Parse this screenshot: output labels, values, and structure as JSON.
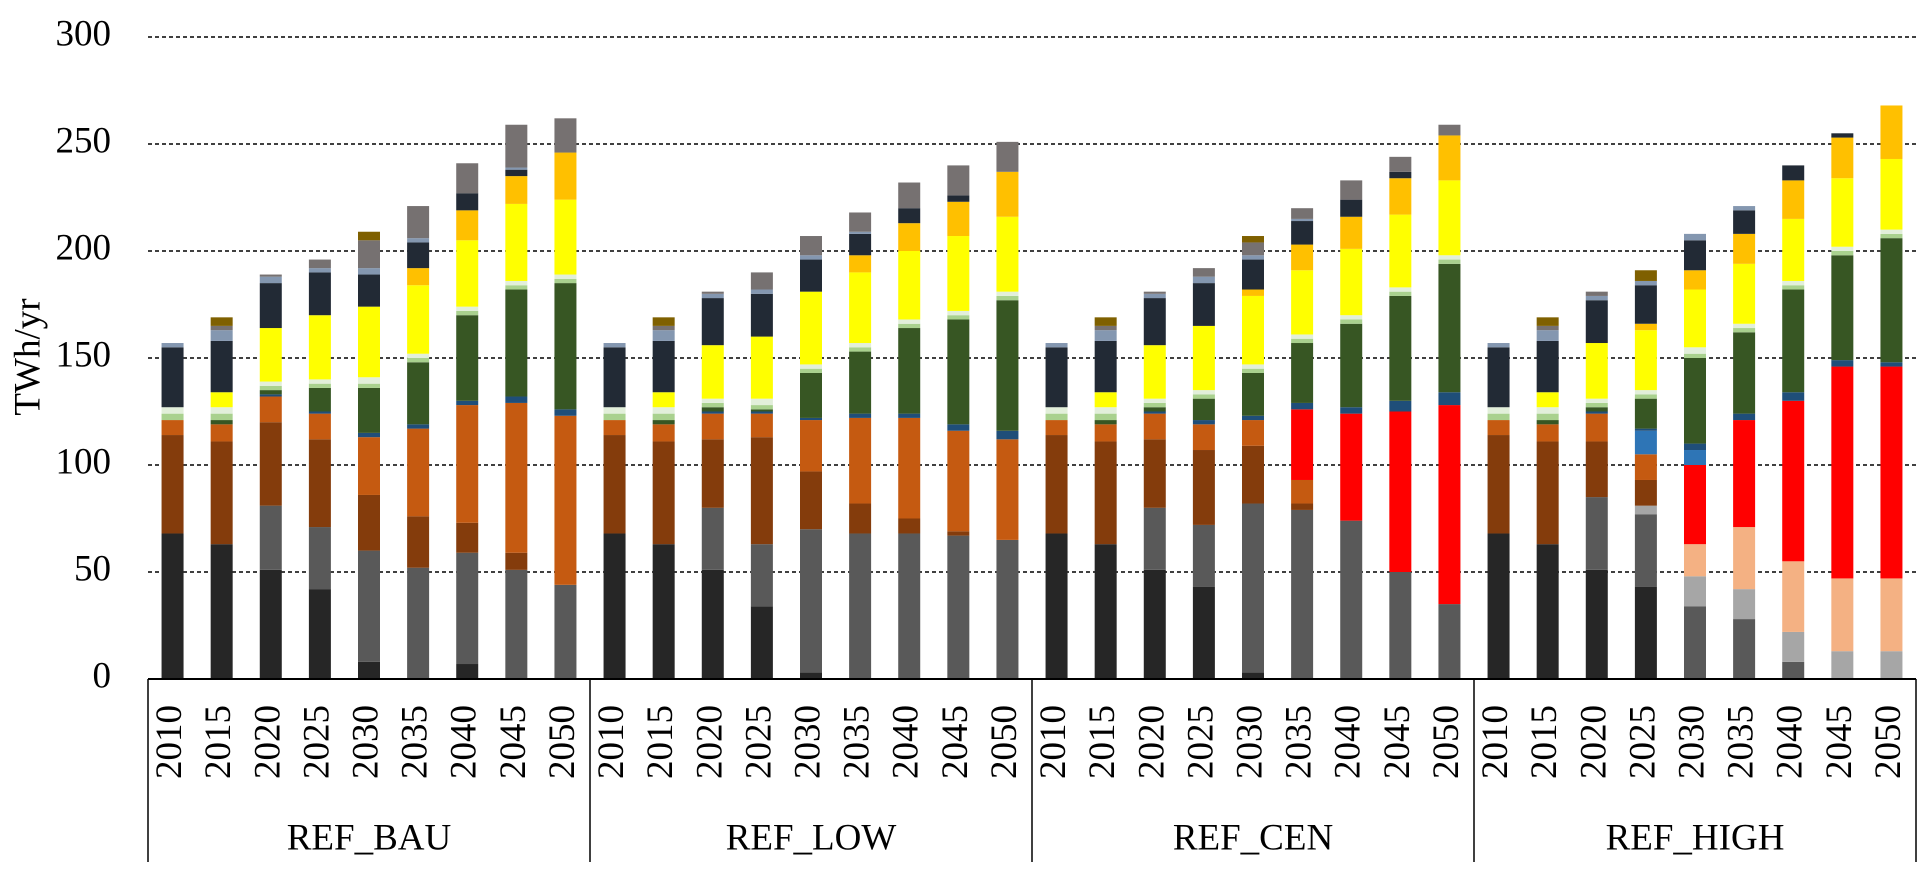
{
  "chart_data": {
    "type": "stacked_bar",
    "y_label": "TWh/yr",
    "groups": [
      "REF_BAU",
      "REF_LOW",
      "REF_CEN",
      "REF_HIGH"
    ],
    "categories": [
      "2010",
      "2015",
      "2020",
      "2025",
      "2030",
      "2035",
      "2040",
      "2045",
      "2050",
      "2010",
      "2015",
      "2020",
      "2025",
      "2030",
      "2035",
      "2040",
      "2045",
      "2050",
      "2010",
      "2015",
      "2020",
      "2025",
      "2030",
      "2035",
      "2040",
      "2045",
      "2050",
      "2010",
      "2015",
      "2020",
      "2025",
      "2030",
      "2035",
      "2040",
      "2045",
      "2050"
    ],
    "ylim": [
      0,
      300
    ],
    "yticks": [
      0,
      50,
      100,
      150,
      200,
      250,
      300
    ],
    "grid": true,
    "series": [
      {
        "color": "#262626",
        "values": [
          68,
          63,
          51,
          42,
          8,
          0,
          7,
          0,
          0,
          68,
          63,
          51,
          34,
          3,
          0,
          0,
          0,
          0,
          68,
          63,
          51,
          43,
          3,
          0,
          0,
          0,
          0,
          68,
          63,
          51,
          43,
          0,
          0,
          0,
          0,
          0
        ]
      },
      {
        "color": "#595959",
        "values": [
          0,
          0,
          30,
          29,
          52,
          52,
          52,
          51,
          44,
          0,
          0,
          29,
          29,
          67,
          68,
          68,
          67,
          65,
          0,
          0,
          29,
          29,
          79,
          79,
          74,
          50,
          35,
          0,
          0,
          34,
          34,
          34,
          28,
          8,
          0,
          0
        ]
      },
      {
        "color": "#a6a6a6",
        "values": [
          0,
          0,
          0,
          0,
          0,
          0,
          0,
          0,
          0,
          0,
          0,
          0,
          0,
          0,
          0,
          0,
          0,
          0,
          0,
          0,
          0,
          0,
          0,
          0,
          0,
          0,
          0,
          0,
          0,
          0,
          4,
          14,
          14,
          14,
          13,
          13
        ]
      },
      {
        "color": "#f4b183",
        "values": [
          0,
          0,
          0,
          0,
          0,
          0,
          0,
          0,
          0,
          0,
          0,
          0,
          0,
          0,
          0,
          0,
          0,
          0,
          0,
          0,
          0,
          0,
          0,
          0,
          0,
          0,
          0,
          0,
          0,
          0,
          0,
          15,
          29,
          33,
          34,
          34
        ]
      },
      {
        "color": "#843c0c",
        "values": [
          46,
          48,
          39,
          41,
          26,
          24,
          14,
          8,
          0,
          46,
          48,
          32,
          50,
          27,
          14,
          7,
          2,
          0,
          46,
          48,
          32,
          35,
          27,
          3,
          0,
          0,
          0,
          46,
          48,
          26,
          12,
          0,
          0,
          0,
          0,
          0
        ]
      },
      {
        "color": "#c55a11",
        "values": [
          7,
          8,
          12,
          12,
          27,
          41,
          55,
          70,
          79,
          7,
          8,
          12,
          11,
          24,
          40,
          47,
          47,
          47,
          7,
          8,
          12,
          12,
          12,
          11,
          0,
          0,
          0,
          7,
          8,
          13,
          12,
          0,
          0,
          0,
          0,
          0
        ]
      },
      {
        "color": "#ff0000",
        "values": [
          0,
          0,
          0,
          0,
          0,
          0,
          0,
          0,
          0,
          0,
          0,
          0,
          0,
          0,
          0,
          0,
          0,
          0,
          0,
          0,
          0,
          0,
          0,
          33,
          50,
          75,
          93,
          0,
          0,
          0,
          0,
          37,
          50,
          75,
          99,
          99
        ]
      },
      {
        "color": "#2e75b6",
        "values": [
          0,
          0,
          0,
          0,
          0,
          0,
          0,
          0,
          0,
          0,
          0,
          0,
          0,
          0,
          0,
          0,
          0,
          0,
          0,
          0,
          0,
          0,
          0,
          0,
          0,
          0,
          0,
          0,
          0,
          0,
          11,
          7,
          0,
          0,
          0,
          0
        ]
      },
      {
        "color": "#1f4e79",
        "values": [
          0,
          0,
          1,
          1,
          2,
          2,
          2,
          3,
          3,
          0,
          0,
          1,
          1,
          1,
          2,
          2,
          3,
          4,
          0,
          0,
          1,
          2,
          2,
          3,
          3,
          5,
          6,
          0,
          0,
          1,
          1,
          3,
          3,
          4,
          3,
          2
        ]
      },
      {
        "color": "#375623",
        "values": [
          0,
          2,
          2,
          11,
          21,
          29,
          40,
          50,
          59,
          0,
          2,
          2,
          1,
          21,
          29,
          40,
          49,
          61,
          0,
          2,
          2,
          10,
          20,
          28,
          39,
          49,
          60,
          0,
          2,
          2,
          14,
          40,
          38,
          48,
          49,
          58
        ]
      },
      {
        "color": "#a9d18e",
        "values": [
          3,
          3,
          2,
          2,
          2,
          2,
          2,
          2,
          2,
          3,
          3,
          2,
          2,
          2,
          2,
          2,
          2,
          2,
          3,
          3,
          2,
          2,
          2,
          2,
          2,
          2,
          2,
          3,
          3,
          2,
          2,
          2,
          2,
          2,
          2,
          2
        ]
      },
      {
        "color": "#e2efda",
        "values": [
          3,
          3,
          2,
          2,
          3,
          2,
          2,
          2,
          2,
          3,
          3,
          2,
          3,
          2,
          2,
          2,
          2,
          2,
          3,
          3,
          2,
          2,
          2,
          2,
          2,
          2,
          2,
          3,
          3,
          2,
          2,
          3,
          2,
          2,
          2,
          2
        ]
      },
      {
        "color": "#ffff00",
        "values": [
          0,
          7,
          25,
          30,
          33,
          32,
          31,
          36,
          35,
          0,
          7,
          25,
          29,
          34,
          33,
          32,
          35,
          35,
          0,
          7,
          25,
          30,
          32,
          30,
          31,
          34,
          35,
          0,
          7,
          26,
          28,
          27,
          28,
          29,
          32,
          33
        ]
      },
      {
        "color": "#ffc000",
        "values": [
          0,
          0,
          0,
          0,
          0,
          8,
          14,
          13,
          22,
          0,
          0,
          0,
          0,
          0,
          8,
          13,
          16,
          21,
          0,
          0,
          0,
          0,
          3,
          12,
          15,
          17,
          21,
          0,
          0,
          0,
          3,
          9,
          14,
          18,
          19,
          25
        ]
      },
      {
        "color": "#222a35",
        "values": [
          28,
          24,
          21,
          20,
          15,
          12,
          8,
          3,
          0,
          28,
          24,
          22,
          20,
          15,
          10,
          7,
          3,
          0,
          28,
          24,
          22,
          20,
          14,
          11,
          8,
          3,
          0,
          28,
          24,
          20,
          18,
          14,
          11,
          7,
          2,
          0
        ]
      },
      {
        "color": "#8497b0",
        "values": [
          2,
          5,
          3,
          2,
          3,
          2,
          0,
          1,
          0,
          2,
          5,
          2,
          2,
          2,
          1,
          0,
          0,
          0,
          2,
          5,
          2,
          3,
          2,
          1,
          0,
          0,
          0,
          2,
          5,
          2,
          2,
          3,
          2,
          0,
          0,
          0
        ]
      },
      {
        "color": "#767171",
        "values": [
          0,
          2,
          1,
          4,
          13,
          15,
          14,
          20,
          16,
          0,
          2,
          1,
          8,
          9,
          9,
          12,
          14,
          14,
          0,
          2,
          1,
          4,
          6,
          5,
          9,
          7,
          5,
          0,
          2,
          2,
          0,
          0,
          0,
          0,
          0,
          0
        ]
      },
      {
        "color": "#7f6000",
        "values": [
          0,
          4,
          0,
          0,
          4,
          0,
          0,
          0,
          0,
          0,
          4,
          0,
          0,
          0,
          0,
          0,
          0,
          0,
          0,
          4,
          0,
          0,
          3,
          0,
          0,
          0,
          0,
          0,
          4,
          0,
          5,
          0,
          0,
          0,
          0,
          0
        ]
      }
    ]
  }
}
